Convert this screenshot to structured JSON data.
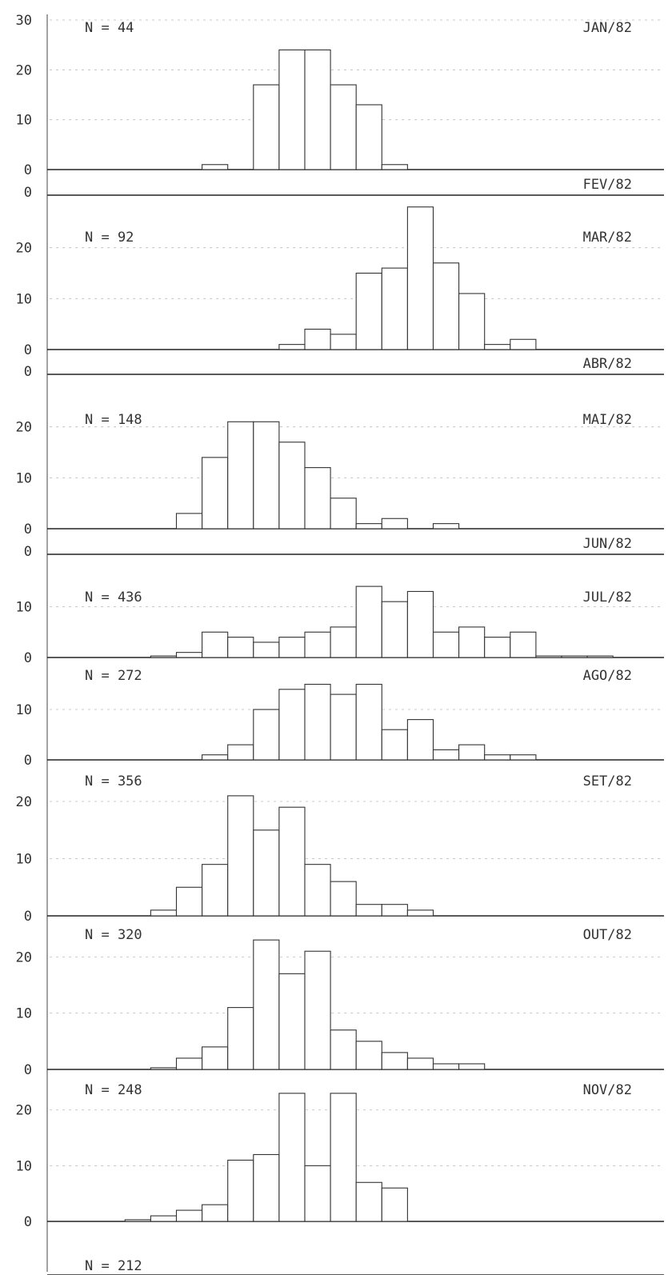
{
  "chart_data": [
    {
      "type": "bar",
      "label": "JAN/82",
      "n_text": "N = 44",
      "categories": [
        "b1",
        "b2",
        "b3",
        "b4",
        "b5",
        "b6",
        "b7",
        "b8",
        "b9",
        "b10",
        "b11",
        "b12",
        "b13",
        "b14",
        "b15",
        "b16",
        "b17",
        "b18",
        "b19",
        "b20",
        "b21",
        "b22",
        "b23"
      ],
      "values": [
        0,
        0,
        0,
        0,
        0,
        0,
        1,
        0,
        17,
        24,
        24,
        17,
        13,
        1,
        0,
        0,
        0,
        0,
        0,
        0,
        0,
        0,
        0
      ],
      "ylim": [
        0,
        30
      ],
      "yticks": [
        "0",
        "10",
        "20",
        "30"
      ],
      "ytick_values": [
        0,
        10,
        20,
        30
      ]
    },
    {
      "type": "bar",
      "label": "FEV/82",
      "n_text": "",
      "categories": [],
      "values": [],
      "ylim": [
        0,
        30
      ],
      "yticks": [
        "0"
      ],
      "ytick_values": [
        0
      ]
    },
    {
      "type": "bar",
      "label": "MAR/82",
      "n_text": "N = 92",
      "categories": [
        "b1",
        "b2",
        "b3",
        "b4",
        "b5",
        "b6",
        "b7",
        "b8",
        "b9",
        "b10",
        "b11",
        "b12",
        "b13",
        "b14",
        "b15",
        "b16",
        "b17",
        "b18",
        "b19",
        "b20",
        "b21",
        "b22",
        "b23"
      ],
      "values": [
        0,
        0,
        0,
        0,
        0,
        0,
        0,
        0,
        0,
        1,
        4,
        3,
        15,
        16,
        28,
        17,
        11,
        1,
        2,
        0,
        0,
        0,
        0
      ],
      "ylim": [
        0,
        30
      ],
      "yticks": [
        "0",
        "10",
        "20"
      ],
      "ytick_values": [
        0,
        10,
        20
      ]
    },
    {
      "type": "bar",
      "label": "ABR/82",
      "n_text": "",
      "categories": [],
      "values": [],
      "ylim": [
        0,
        30
      ],
      "yticks": [
        "0"
      ],
      "ytick_values": [
        0
      ]
    },
    {
      "type": "bar",
      "label": "MAI/82",
      "n_text": "N = 148",
      "categories": [
        "b1",
        "b2",
        "b3",
        "b4",
        "b5",
        "b6",
        "b7",
        "b8",
        "b9",
        "b10",
        "b11",
        "b12",
        "b13",
        "b14",
        "b15",
        "b16",
        "b17",
        "b18",
        "b19",
        "b20",
        "b21",
        "b22",
        "b23"
      ],
      "values": [
        0,
        0,
        0,
        0,
        0,
        3,
        14,
        21,
        21,
        17,
        12,
        6,
        1,
        2,
        0,
        1,
        0,
        0,
        0,
        0,
        0,
        0,
        0
      ],
      "ylim": [
        0,
        30
      ],
      "yticks": [
        "0",
        "10",
        "20"
      ],
      "ytick_values": [
        0,
        10,
        20
      ]
    },
    {
      "type": "bar",
      "label": "JUN/82",
      "n_text": "",
      "categories": [],
      "values": [],
      "ylim": [
        0,
        30
      ],
      "yticks": [
        "0"
      ],
      "ytick_values": [
        0
      ]
    },
    {
      "type": "bar",
      "label": "JUL/82",
      "n_text": "N = 436",
      "categories": [
        "b1",
        "b2",
        "b3",
        "b4",
        "b5",
        "b6",
        "b7",
        "b8",
        "b9",
        "b10",
        "b11",
        "b12",
        "b13",
        "b14",
        "b15",
        "b16",
        "b17",
        "b18",
        "b19",
        "b20",
        "b21",
        "b22",
        "b23"
      ],
      "values": [
        0,
        0,
        0,
        0,
        0.3,
        1,
        5,
        4,
        3,
        4,
        5,
        6,
        14,
        11,
        13,
        5,
        6,
        4,
        5,
        0.3,
        0.3,
        0.3,
        0
      ],
      "ylim": [
        0,
        20
      ],
      "yticks": [
        "0",
        "10"
      ],
      "ytick_values": [
        0,
        10
      ]
    },
    {
      "type": "bar",
      "label": "AGO/82",
      "n_text": "N = 272",
      "categories": [
        "b1",
        "b2",
        "b3",
        "b4",
        "b5",
        "b6",
        "b7",
        "b8",
        "b9",
        "b10",
        "b11",
        "b12",
        "b13",
        "b14",
        "b15",
        "b16",
        "b17",
        "b18",
        "b19",
        "b20",
        "b21",
        "b22",
        "b23"
      ],
      "values": [
        0,
        0,
        0,
        0,
        0,
        0,
        1,
        3,
        10,
        14,
        15,
        13,
        15,
        6,
        8,
        2,
        3,
        1,
        1,
        0,
        0,
        0,
        0
      ],
      "ylim": [
        0,
        20
      ],
      "yticks": [
        "0",
        "10"
      ],
      "ytick_values": [
        0,
        10
      ]
    },
    {
      "type": "bar",
      "label": "SET/82",
      "n_text": "N = 356",
      "categories": [
        "b1",
        "b2",
        "b3",
        "b4",
        "b5",
        "b6",
        "b7",
        "b8",
        "b9",
        "b10",
        "b11",
        "b12",
        "b13",
        "b14",
        "b15",
        "b16",
        "b17",
        "b18",
        "b19",
        "b20",
        "b21",
        "b22",
        "b23"
      ],
      "values": [
        0,
        0,
        0,
        0,
        1,
        5,
        9,
        21,
        15,
        19,
        9,
        6,
        2,
        2,
        1,
        0,
        0,
        0,
        0,
        0,
        0,
        0,
        0
      ],
      "ylim": [
        0,
        27
      ],
      "yticks": [
        "0",
        "10",
        "20"
      ],
      "ytick_values": [
        0,
        10,
        20
      ]
    },
    {
      "type": "bar",
      "label": "OUT/82",
      "n_text": "N = 320",
      "categories": [
        "b1",
        "b2",
        "b3",
        "b4",
        "b5",
        "b6",
        "b7",
        "b8",
        "b9",
        "b10",
        "b11",
        "b12",
        "b13",
        "b14",
        "b15",
        "b16",
        "b17",
        "b18",
        "b19",
        "b20",
        "b21",
        "b22",
        "b23"
      ],
      "values": [
        0,
        0,
        0,
        0,
        0.3,
        2,
        4,
        11,
        23,
        17,
        21,
        7,
        5,
        3,
        2,
        1,
        1,
        0,
        0,
        0,
        0,
        0,
        0
      ],
      "ylim": [
        0,
        27
      ],
      "yticks": [
        "0",
        "10",
        "20"
      ],
      "ytick_values": [
        0,
        10,
        20
      ]
    },
    {
      "type": "bar",
      "label": "NOV/82",
      "n_text": "N = 248",
      "categories": [
        "b1",
        "b2",
        "b3",
        "b4",
        "b5",
        "b6",
        "b7",
        "b8",
        "b9",
        "b10",
        "b11",
        "b12",
        "b13",
        "b14",
        "b15",
        "b16",
        "b17",
        "b18",
        "b19",
        "b20",
        "b21",
        "b22",
        "b23"
      ],
      "values": [
        0,
        0,
        0,
        0.3,
        1,
        2,
        3,
        11,
        12,
        23,
        10,
        23,
        7,
        6,
        0,
        0,
        0,
        0,
        0,
        0,
        0,
        0,
        0
      ],
      "ylim": [
        0,
        27
      ],
      "yticks": [
        "0",
        "10",
        "20"
      ],
      "ytick_values": [
        0,
        10,
        20
      ]
    },
    {
      "type": "bar",
      "label": "",
      "n_text": "N = 212",
      "categories": [],
      "values": [],
      "ylim": [
        0,
        27
      ],
      "yticks": [],
      "ytick_values": []
    }
  ]
}
